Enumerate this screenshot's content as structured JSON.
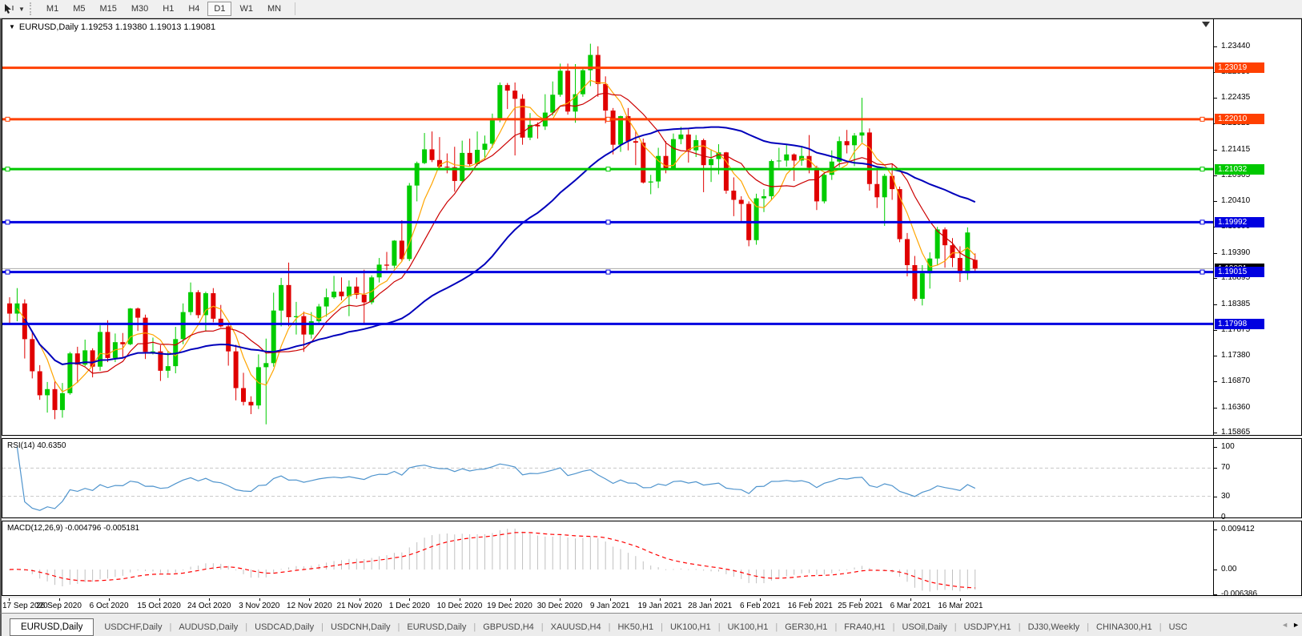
{
  "toolbar": {
    "timeframes": [
      "M1",
      "M5",
      "M15",
      "M30",
      "H1",
      "H4",
      "D1",
      "W1",
      "MN"
    ],
    "active": "D1"
  },
  "chart_title": {
    "display": "EURUSD,Daily  1.19253 1.19380 1.19013 1.19081",
    "symbol": "EURUSD",
    "period": "Daily",
    "open": "1.19253",
    "high": "1.19380",
    "low": "1.19013",
    "close": "1.19081"
  },
  "chart_data": {
    "type": "candlestick",
    "title": "EURUSD,Daily",
    "y_axis_ticks": [
      "1.23440",
      "1.22930",
      "1.22435",
      "1.21925",
      "1.21415",
      "1.20905",
      "1.20410",
      "1.19900",
      "1.19390",
      "1.18895",
      "1.18385",
      "1.17875",
      "1.17380",
      "1.16870",
      "1.16360",
      "1.15865"
    ],
    "x_axis_labels": [
      "17 Sep 2020",
      "26 Sep 2020",
      "6 Oct 2020",
      "15 Oct 2020",
      "24 Oct 2020",
      "3 Nov 2020",
      "12 Nov 2020",
      "21 Nov 2020",
      "1 Dec 2020",
      "10 Dec 2020",
      "19 Dec 2020",
      "30 Dec 2020",
      "9 Jan 2021",
      "19 Jan 2021",
      "28 Jan 2021",
      "6 Feb 2021",
      "16 Feb 2021",
      "25 Feb 2021",
      "6 Mar 2021",
      "16 Mar 2021"
    ],
    "hlines": [
      {
        "price": 1.23019,
        "label": "1.23019",
        "color": "#FF4000",
        "selected": false
      },
      {
        "price": 1.2201,
        "label": "1.22010",
        "color": "#FF4000",
        "selected": true
      },
      {
        "price": 1.21032,
        "label": "1.21032",
        "color": "#00C800",
        "selected": true
      },
      {
        "price": 1.19992,
        "label": "1.19992",
        "color": "#0000E0",
        "selected": true
      },
      {
        "price": 1.19015,
        "label": "1.19015",
        "color": "#0000E0",
        "selected": true
      },
      {
        "price": 1.17998,
        "label": "1.17998",
        "color": "#0000E0",
        "selected": false
      }
    ],
    "current_price": {
      "price": 1.19081,
      "label": "1.19081",
      "line_color": "#aaaaaa",
      "badge_color": "#000000"
    },
    "colors": {
      "up": "#00CC00",
      "down": "#E00000",
      "ma_fast": "#FFA500",
      "ma_mid": "#CC0000",
      "ma_slow": "#0000BB"
    },
    "candles": [
      [
        1.184,
        1.1852,
        1.18,
        1.182
      ],
      [
        1.182,
        1.187,
        1.1805,
        1.184
      ],
      [
        1.184,
        1.1848,
        1.1732,
        1.177
      ],
      [
        1.177,
        1.1783,
        1.1693,
        1.1707
      ],
      [
        1.1707,
        1.1719,
        1.1651,
        1.166
      ],
      [
        1.166,
        1.1686,
        1.1626,
        1.1672
      ],
      [
        1.1672,
        1.1688,
        1.1613,
        1.1631
      ],
      [
        1.1631,
        1.1684,
        1.1616,
        1.1664
      ],
      [
        1.1664,
        1.1745,
        1.1661,
        1.1742
      ],
      [
        1.1742,
        1.1755,
        1.1684,
        1.172
      ],
      [
        1.172,
        1.1769,
        1.1717,
        1.1748
      ],
      [
        1.1748,
        1.1752,
        1.1695,
        1.1716
      ],
      [
        1.1716,
        1.1797,
        1.1708,
        1.1784
      ],
      [
        1.1784,
        1.1807,
        1.1725,
        1.1733
      ],
      [
        1.1733,
        1.1781,
        1.1725,
        1.1764
      ],
      [
        1.1764,
        1.1782,
        1.1733,
        1.176
      ],
      [
        1.176,
        1.1831,
        1.1758,
        1.183
      ],
      [
        1.183,
        1.1832,
        1.1786,
        1.1812
      ],
      [
        1.1812,
        1.1818,
        1.1731,
        1.1745
      ],
      [
        1.1745,
        1.1773,
        1.174,
        1.1746
      ],
      [
        1.1746,
        1.1758,
        1.1688,
        1.1708
      ],
      [
        1.1708,
        1.1747,
        1.1694,
        1.1717
      ],
      [
        1.1717,
        1.1794,
        1.1703,
        1.177
      ],
      [
        1.177,
        1.184,
        1.176,
        1.1823
      ],
      [
        1.1823,
        1.1881,
        1.1817,
        1.1862
      ],
      [
        1.1862,
        1.1866,
        1.1811,
        1.1817
      ],
      [
        1.1817,
        1.1863,
        1.1785,
        1.186
      ],
      [
        1.186,
        1.187,
        1.1803,
        1.181
      ],
      [
        1.181,
        1.1837,
        1.1793,
        1.1795
      ],
      [
        1.1795,
        1.18,
        1.1718,
        1.1746
      ],
      [
        1.1746,
        1.1759,
        1.165,
        1.1674
      ],
      [
        1.1674,
        1.1704,
        1.164,
        1.1647
      ],
      [
        1.1647,
        1.1658,
        1.1623,
        1.164
      ],
      [
        1.164,
        1.174,
        1.1633,
        1.1715
      ],
      [
        1.1715,
        1.1771,
        1.1603,
        1.1723
      ],
      [
        1.1723,
        1.1861,
        1.1716,
        1.1826
      ],
      [
        1.1826,
        1.189,
        1.1795,
        1.1876
      ],
      [
        1.1876,
        1.192,
        1.1795,
        1.1813
      ],
      [
        1.1813,
        1.1843,
        1.1779,
        1.1815
      ],
      [
        1.1815,
        1.1824,
        1.1745,
        1.1779
      ],
      [
        1.1779,
        1.1823,
        1.1771,
        1.1805
      ],
      [
        1.1805,
        1.1839,
        1.1799,
        1.1834
      ],
      [
        1.1834,
        1.1869,
        1.1814,
        1.1852
      ],
      [
        1.1852,
        1.1894,
        1.1849,
        1.1863
      ],
      [
        1.1863,
        1.1891,
        1.1846,
        1.1854
      ],
      [
        1.1854,
        1.1885,
        1.1815,
        1.1873
      ],
      [
        1.1873,
        1.1891,
        1.1849,
        1.1857
      ],
      [
        1.1857,
        1.1906,
        1.18,
        1.1842
      ],
      [
        1.1842,
        1.1895,
        1.1838,
        1.1891
      ],
      [
        1.1891,
        1.1929,
        1.1881,
        1.1916
      ],
      [
        1.1916,
        1.1941,
        1.1905,
        1.1914
      ],
      [
        1.1914,
        1.1964,
        1.1909,
        1.1963
      ],
      [
        1.1963,
        1.2003,
        1.1923,
        1.1927
      ],
      [
        1.1927,
        1.2076,
        1.1923,
        1.2071
      ],
      [
        1.2071,
        1.2118,
        1.204,
        1.2115
      ],
      [
        1.2115,
        1.2174,
        1.2113,
        1.2142
      ],
      [
        1.2142,
        1.2177,
        1.2117,
        1.2121
      ],
      [
        1.2121,
        1.2166,
        1.2104,
        1.2108
      ],
      [
        1.2108,
        1.2134,
        1.2095,
        1.2107
      ],
      [
        1.2107,
        1.2147,
        1.2059,
        1.208
      ],
      [
        1.208,
        1.2159,
        1.2076,
        1.2135
      ],
      [
        1.2135,
        1.2163,
        1.2109,
        1.2113
      ],
      [
        1.2113,
        1.2177,
        1.211,
        1.2141
      ],
      [
        1.2141,
        1.2169,
        1.2122,
        1.2153
      ],
      [
        1.2153,
        1.2212,
        1.2145,
        1.2199
      ],
      [
        1.2199,
        1.2273,
        1.2195,
        1.2268
      ],
      [
        1.2268,
        1.2272,
        1.2221,
        1.2257
      ],
      [
        1.2257,
        1.2273,
        1.213,
        1.2241
      ],
      [
        1.2241,
        1.225,
        1.2151,
        1.2165
      ],
      [
        1.2165,
        1.2213,
        1.216,
        1.219
      ],
      [
        1.219,
        1.2195,
        1.2163,
        1.2187
      ],
      [
        1.2187,
        1.225,
        1.218,
        1.2214
      ],
      [
        1.2214,
        1.2275,
        1.2208,
        1.2249
      ],
      [
        1.2249,
        1.231,
        1.2245,
        1.2296
      ],
      [
        1.2296,
        1.231,
        1.221,
        1.2216
      ],
      [
        1.2216,
        1.2309,
        1.2194,
        1.225
      ],
      [
        1.225,
        1.2303,
        1.2245,
        1.2297
      ],
      [
        1.2297,
        1.2349,
        1.2266,
        1.2327
      ],
      [
        1.2327,
        1.2344,
        1.2245,
        1.227
      ],
      [
        1.227,
        1.2285,
        1.2193,
        1.2218
      ],
      [
        1.2218,
        1.2223,
        1.2132,
        1.2151
      ],
      [
        1.2151,
        1.2208,
        1.2137,
        1.2207
      ],
      [
        1.2207,
        1.2223,
        1.214,
        1.2158
      ],
      [
        1.2158,
        1.2179,
        1.2111,
        1.2155
      ],
      [
        1.2155,
        1.2163,
        1.2075,
        1.2077
      ],
      [
        1.2077,
        1.2092,
        1.2054,
        1.2079
      ],
      [
        1.2079,
        1.2145,
        1.2066,
        1.2129
      ],
      [
        1.2129,
        1.2158,
        1.2095,
        1.2105
      ],
      [
        1.2105,
        1.2173,
        1.2103,
        1.2162
      ],
      [
        1.2162,
        1.2186,
        1.2152,
        1.2171
      ],
      [
        1.2171,
        1.2181,
        1.2116,
        1.214
      ],
      [
        1.214,
        1.217,
        1.2127,
        1.216
      ],
      [
        1.216,
        1.2163,
        1.2058,
        1.2111
      ],
      [
        1.2111,
        1.2142,
        1.2078,
        1.2123
      ],
      [
        1.2123,
        1.2152,
        1.2093,
        1.2136
      ],
      [
        1.2136,
        1.2137,
        1.2055,
        1.2061
      ],
      [
        1.2061,
        1.2087,
        1.2011,
        1.2043
      ],
      [
        1.2043,
        1.205,
        1.1998,
        1.2035
      ],
      [
        1.2035,
        1.204,
        1.1952,
        1.1964
      ],
      [
        1.1964,
        1.2055,
        1.1955,
        1.2046
      ],
      [
        1.2046,
        1.2064,
        1.2019,
        1.205
      ],
      [
        1.205,
        1.2122,
        1.2043,
        1.2119
      ],
      [
        1.2119,
        1.2145,
        1.2106,
        1.212
      ],
      [
        1.212,
        1.2151,
        1.2108,
        1.2132
      ],
      [
        1.2132,
        1.2134,
        1.208,
        1.212
      ],
      [
        1.212,
        1.2146,
        1.211,
        1.2129
      ],
      [
        1.2129,
        1.217,
        1.2095,
        1.2106
      ],
      [
        1.2106,
        1.211,
        1.2023,
        1.204
      ],
      [
        1.204,
        1.2097,
        1.2036,
        1.2092
      ],
      [
        1.2092,
        1.214,
        1.2082,
        1.2118
      ],
      [
        1.2118,
        1.2167,
        1.2107,
        1.2158
      ],
      [
        1.2158,
        1.218,
        1.2134,
        1.215
      ],
      [
        1.215,
        1.2174,
        1.2109,
        1.2169
      ],
      [
        1.2169,
        1.2243,
        1.2155,
        1.2175
      ],
      [
        1.2175,
        1.2183,
        1.2061,
        1.2074
      ],
      [
        1.2074,
        1.2101,
        1.2027,
        1.2048
      ],
      [
        1.2048,
        1.2094,
        1.1992,
        1.209
      ],
      [
        1.209,
        1.2113,
        1.2043,
        1.2064
      ],
      [
        1.2064,
        1.2069,
        1.196,
        1.1966
      ],
      [
        1.1966,
        1.1978,
        1.1893,
        1.1915
      ],
      [
        1.1915,
        1.1933,
        1.1845,
        1.1849
      ],
      [
        1.1849,
        1.1915,
        1.1836,
        1.1899
      ],
      [
        1.1899,
        1.194,
        1.1869,
        1.1928
      ],
      [
        1.1928,
        1.199,
        1.1915,
        1.1985
      ],
      [
        1.1985,
        1.1989,
        1.191,
        1.1954
      ],
      [
        1.1954,
        1.1968,
        1.1911,
        1.1929
      ],
      [
        1.1929,
        1.1952,
        1.1882,
        1.1899
      ],
      [
        1.1899,
        1.1989,
        1.1886,
        1.1979
      ],
      [
        1.19253,
        1.1938,
        1.19013,
        1.19081
      ]
    ]
  },
  "rsi": {
    "label": "RSI(14) 40.6350",
    "value": "40.6350",
    "axis_ticks": [
      "100",
      "70",
      "30",
      "0"
    ],
    "dashed_levels": [
      70,
      30
    ],
    "line_color": "#4f94cd",
    "level_color": "#c8c8c8"
  },
  "macd": {
    "label": "MACD(12,26,9) -0.004796 -0.005181",
    "macd_value": "-0.004796",
    "signal_value": "-0.005181",
    "axis_ticks": [
      "0.009412",
      "0.00",
      "-0.006386"
    ],
    "histogram_color": "#c0c0c0",
    "signal_color": "#FF0000"
  },
  "tabs": {
    "items": [
      {
        "label": "EURUSD,Daily",
        "active": true
      },
      {
        "label": "USDCHF,Daily",
        "active": false
      },
      {
        "label": "AUDUSD,Daily",
        "active": false
      },
      {
        "label": "USDCAD,Daily",
        "active": false
      },
      {
        "label": "USDCNH,Daily",
        "active": false
      },
      {
        "label": "EURUSD,Daily",
        "active": false
      },
      {
        "label": "GBPUSD,H4",
        "active": false
      },
      {
        "label": "XAUUSD,H4",
        "active": false
      },
      {
        "label": "HK50,H1",
        "active": false
      },
      {
        "label": "UK100,H1",
        "active": false
      },
      {
        "label": "UK100,H1",
        "active": false
      },
      {
        "label": "GER30,H1",
        "active": false
      },
      {
        "label": "FRA40,H1",
        "active": false
      },
      {
        "label": "USOil,Daily",
        "active": false
      },
      {
        "label": "USDJPY,H1",
        "active": false
      },
      {
        "label": "DJ30,Weekly",
        "active": false
      },
      {
        "label": "CHINA300,H1",
        "active": false
      },
      {
        "label": "USO",
        "active": false,
        "clipped": true
      }
    ],
    "scroll_left_icon": "◄",
    "scroll_right_icon": "►"
  }
}
